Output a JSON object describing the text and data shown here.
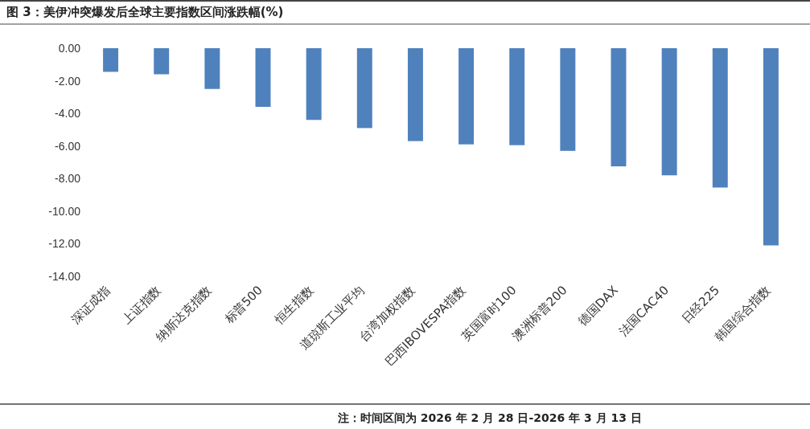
{
  "chart_data": {
    "type": "bar",
    "title": "图 3：美伊冲突爆发后全球主要指数区间涨跌幅(%)",
    "categories": [
      "深证成指",
      "上证指数",
      "纳斯达克指数",
      "标普500",
      "恒生指数",
      "道琼斯工业平均",
      "台湾加权指数",
      "巴西IBOVESPA指数",
      "英国富时100",
      "澳洲标普200",
      "德国DAX",
      "法国CAC40",
      "日经225",
      "韩国综合指数"
    ],
    "values": [
      -1.45,
      -1.6,
      -2.5,
      -3.6,
      -4.4,
      -4.9,
      -5.7,
      -5.9,
      -5.95,
      -6.3,
      -7.25,
      -7.8,
      -8.55,
      -12.1
    ],
    "color": "#4f81bd",
    "ylim": [
      -14,
      0
    ],
    "yticks": [
      {
        "value": 0,
        "label": "0.00"
      },
      {
        "value": -2,
        "label": "-2.00"
      },
      {
        "value": -4,
        "label": "-4.00"
      },
      {
        "value": -6,
        "label": "-6.00"
      },
      {
        "value": -8,
        "label": "-8.00"
      },
      {
        "value": -10,
        "label": "-10.00"
      },
      {
        "value": -12,
        "label": "-12.00"
      },
      {
        "value": -14,
        "label": "-14.00"
      }
    ],
    "annotations": [
      "注：时间区间为 2026 年 2 月 28 日-2026 年 3 月 13 日"
    ]
  }
}
